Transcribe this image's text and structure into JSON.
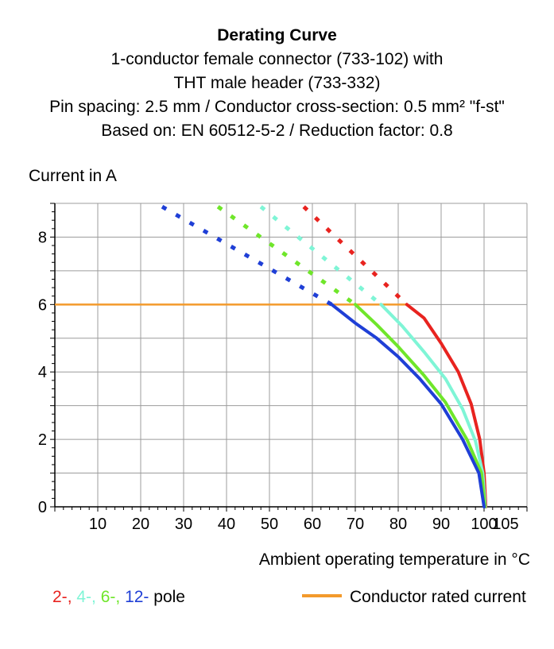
{
  "header": {
    "title": "Derating Curve",
    "line1": "1-conductor female connector (733-102) with",
    "line2": "THT male header (733-332)",
    "line3": "Pin spacing: 2.5 mm / Conductor cross-section: 0.5 mm² \"f-st\"",
    "line4": "Based on: EN 60512-5-2 / Reduction factor: 0.8"
  },
  "legend": {
    "series_parts": [
      {
        "text": "2-",
        "color": "#e8231f"
      },
      {
        "text": ", ",
        "color": "#e8231f"
      },
      {
        "text": "4-",
        "color": "#7ff5d6"
      },
      {
        "text": ", ",
        "color": "#7ff5d6"
      },
      {
        "text": "6-",
        "color": "#6fe62a"
      },
      {
        "text": ", ",
        "color": "#6fe62a"
      },
      {
        "text": "12-",
        "color": "#1f3fd6"
      },
      {
        "text": " pole",
        "color": "#000000"
      }
    ],
    "rated_label": "Conductor rated current",
    "rated_color": "#f39a2b"
  },
  "chart_data": {
    "type": "line",
    "title": "",
    "xlabel": "Ambient operating temperature in °C",
    "ylabel": "Current in A",
    "xlim": [
      0,
      110
    ],
    "ylim": [
      0,
      9
    ],
    "xticks": [
      10,
      20,
      30,
      40,
      50,
      60,
      70,
      80,
      90,
      100,
      105
    ],
    "yticks": [
      0,
      2,
      4,
      6,
      8
    ],
    "grid": true,
    "rated_current": {
      "name": "Conductor rated current",
      "value": 6,
      "color": "#f39a2b"
    },
    "series": [
      {
        "name": "2-",
        "color": "#e8231f",
        "dashed": [
          [
            58,
            8.9
          ],
          [
            82,
            6.0
          ]
        ],
        "solid": [
          [
            82,
            6.0
          ],
          [
            86,
            5.6
          ],
          [
            90,
            4.85
          ],
          [
            94,
            4.0
          ],
          [
            97,
            3.05
          ],
          [
            99,
            2.0
          ],
          [
            100,
            1.0
          ],
          [
            100.4,
            0.0
          ]
        ]
      },
      {
        "name": "4-",
        "color": "#7ff5d6",
        "dashed": [
          [
            48,
            8.9
          ],
          [
            76,
            6.0
          ]
        ],
        "solid": [
          [
            76,
            6.0
          ],
          [
            81,
            5.35
          ],
          [
            86,
            4.6
          ],
          [
            91,
            3.8
          ],
          [
            95,
            2.9
          ],
          [
            98,
            1.95
          ],
          [
            99.7,
            1.0
          ],
          [
            100.3,
            0.0
          ]
        ]
      },
      {
        "name": "6-",
        "color": "#6fe62a",
        "dashed": [
          [
            38,
            8.9
          ],
          [
            70,
            6.0
          ]
        ],
        "solid": [
          [
            70,
            6.0
          ],
          [
            75,
            5.4
          ],
          [
            80,
            4.75
          ],
          [
            86,
            3.9
          ],
          [
            91,
            3.1
          ],
          [
            96,
            2.0
          ],
          [
            99.4,
            1.0
          ],
          [
            100.2,
            0.0
          ]
        ]
      },
      {
        "name": "12-",
        "color": "#1f3fd6",
        "dashed": [
          [
            25,
            8.9
          ],
          [
            64.5,
            6.0
          ]
        ],
        "solid": [
          [
            64.5,
            6.0
          ],
          [
            70,
            5.45
          ],
          [
            75,
            5.0
          ],
          [
            80,
            4.45
          ],
          [
            85,
            3.8
          ],
          [
            90,
            3.05
          ],
          [
            95,
            2.0
          ],
          [
            98.8,
            1.0
          ],
          [
            100,
            0.0
          ]
        ]
      }
    ]
  }
}
